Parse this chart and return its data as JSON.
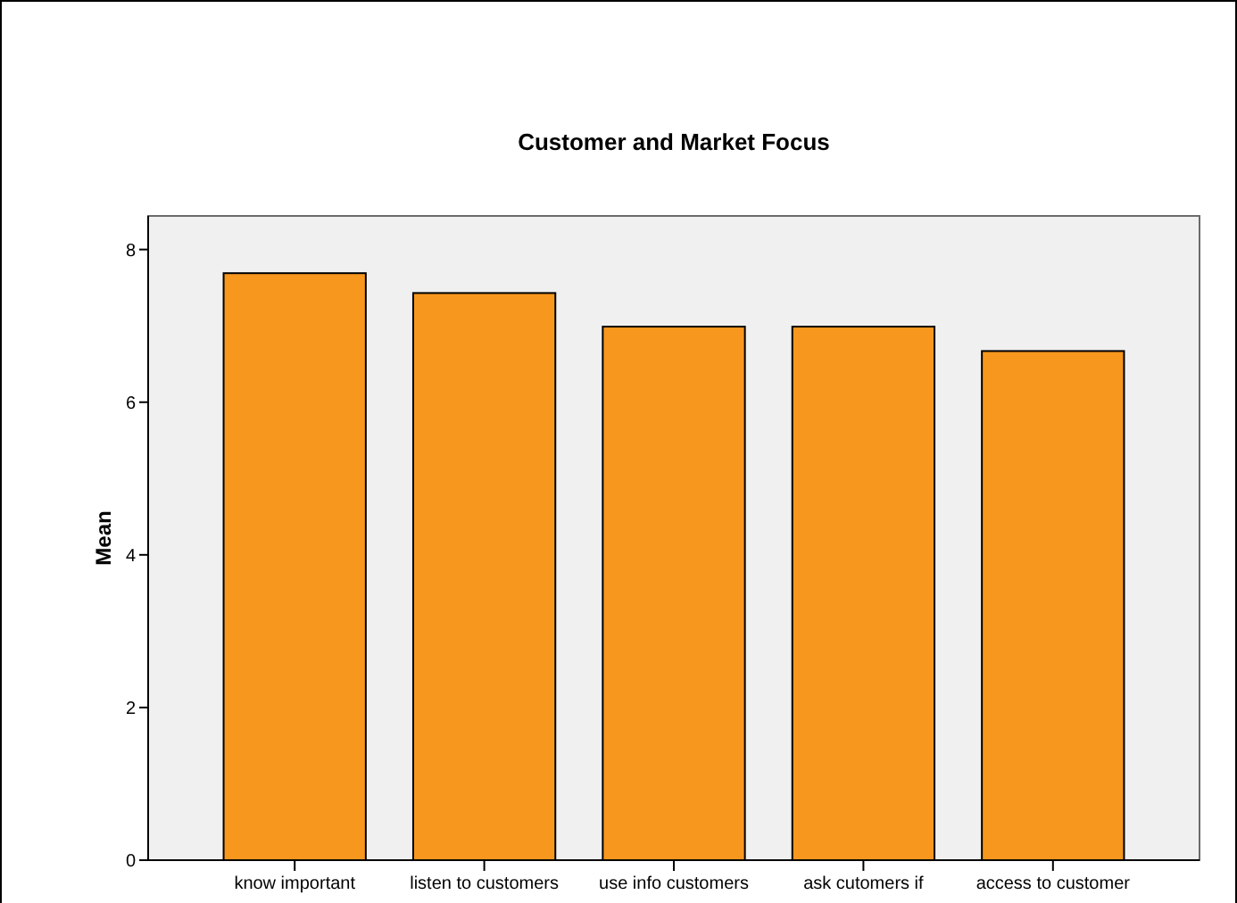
{
  "chart_data": {
    "type": "bar",
    "title": "Customer and Market Focus",
    "ylabel": "Mean",
    "categories": [
      "know important",
      "listen to customers",
      "use info customers",
      "ask cutomers if",
      "access to customer"
    ],
    "values": [
      7.69,
      7.43,
      6.99,
      6.99,
      6.67
    ],
    "color": "#f7971e",
    "ylim": [
      0,
      8.44
    ],
    "yticks": [
      0,
      2,
      4,
      6,
      8
    ],
    "grid": false
  }
}
